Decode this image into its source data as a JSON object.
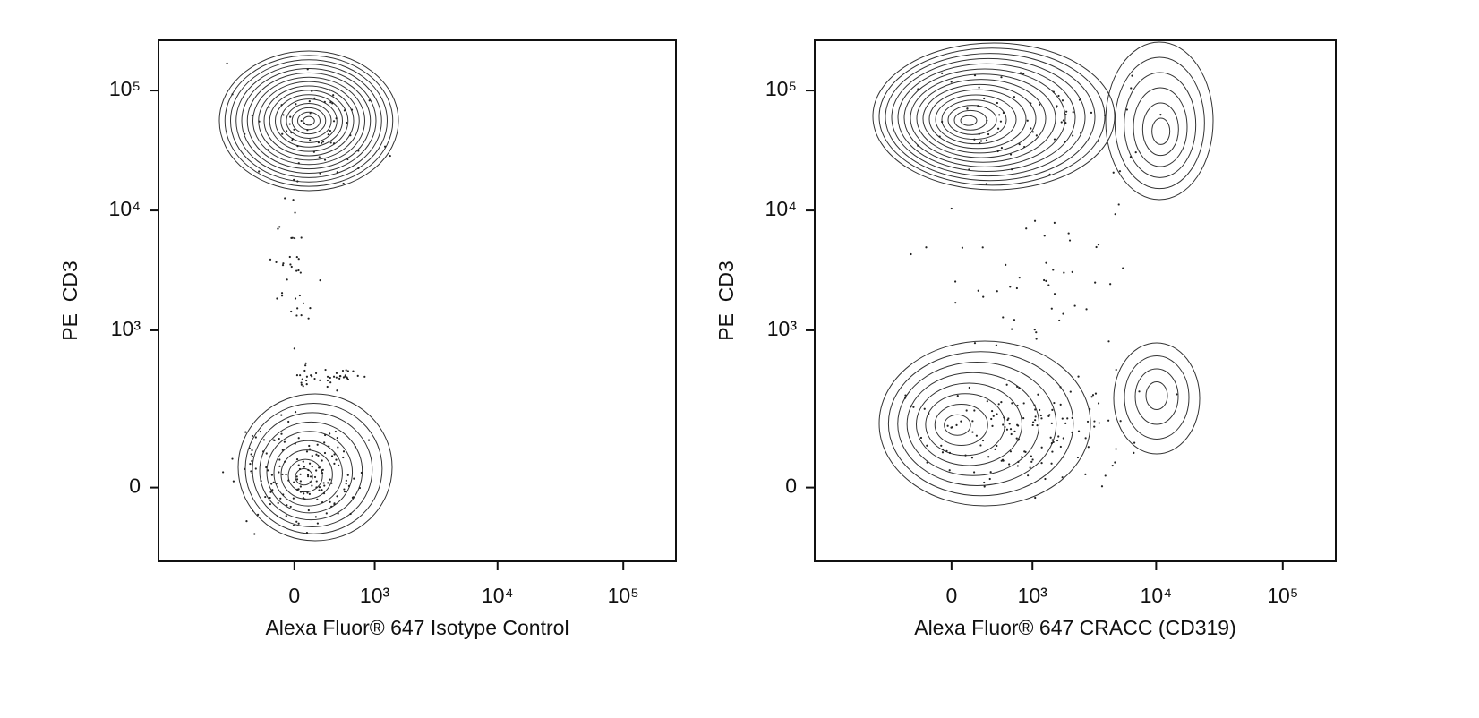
{
  "chart_data": [
    {
      "type": "contour",
      "x_label": "Alexa Fluor® 647 Isotype Control",
      "y_label": "PE  CD3",
      "xlim": [
        -2900,
        262144
      ],
      "ylim": [
        -190,
        262144
      ],
      "xticks": [
        0,
        {
          "value": 1000,
          "label": "10³"
        },
        {
          "value": 10000,
          "label": "10⁴"
        },
        {
          "value": 100000,
          "label": "10⁵"
        }
      ],
      "yticks": [
        0,
        {
          "value": 1000,
          "label": "10³"
        },
        {
          "value": 10000,
          "label": "10⁴"
        },
        {
          "value": 100000,
          "label": "10⁵"
        }
      ]
    },
    {
      "type": "contour",
      "x_label": "Alexa Fluor® 647 CRACC (CD319)",
      "y_label": "PE  CD3",
      "xlim": [
        -2900,
        262144
      ],
      "ylim": [
        -190,
        262144
      ],
      "xticks": [
        0,
        {
          "value": 1000,
          "label": "10³"
        },
        {
          "value": 10000,
          "label": "10⁴"
        },
        {
          "value": 100000,
          "label": "10⁵"
        }
      ],
      "yticks": [
        0,
        {
          "value": 1000,
          "label": "10³"
        },
        {
          "value": 10000,
          "label": "10⁴"
        },
        {
          "value": 100000,
          "label": "10⁵"
        }
      ]
    }
  ]
}
